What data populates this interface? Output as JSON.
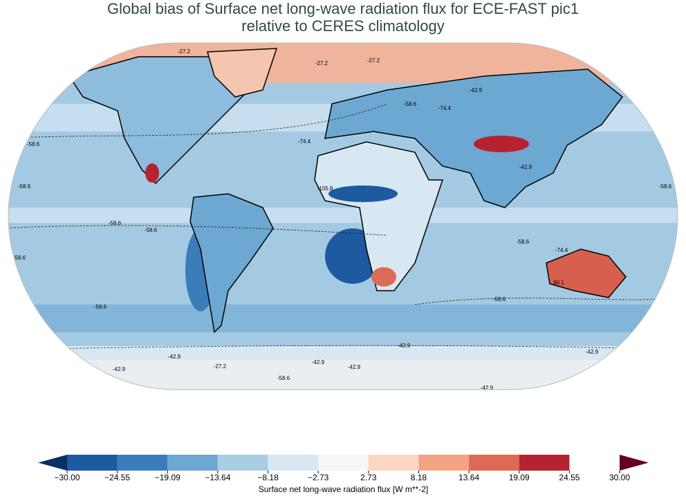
{
  "title": [
    "Global bias of Surface net long-wave radiation flux for ECE-FAST pic1",
    "relative to CERES climatology"
  ],
  "contour_labels": [
    -27.2,
    -27.2,
    -27.2,
    -42.9,
    -58.6,
    -74.4,
    -58.6,
    -58.6,
    -58.6,
    -58.6,
    -58.6,
    -58.6,
    -58.6,
    -58.6,
    -58.6,
    -74.4,
    -42.9,
    90.1,
    -105.8,
    -42.9,
    -42.9,
    -42.9,
    -42.9,
    -42.9,
    -42.9,
    -42.9,
    -58.6,
    -27.2,
    -74.4
  ],
  "colorbar": {
    "label": "Surface net long-wave radiation flux [W m**-2]",
    "ticks": [
      {
        "value": -30,
        "label": "−30.00"
      },
      {
        "value": -24.55,
        "label": "−24.55"
      },
      {
        "value": -19.09,
        "label": "−19.09"
      },
      {
        "value": -13.64,
        "label": "−13.64"
      },
      {
        "value": -8.18,
        "label": "−8.18"
      },
      {
        "value": -2.73,
        "label": "−2.73"
      },
      {
        "value": 2.73,
        "label": "2.73"
      },
      {
        "value": 8.18,
        "label": "8.18"
      },
      {
        "value": 13.64,
        "label": "13.64"
      },
      {
        "value": 19.09,
        "label": "19.09"
      },
      {
        "value": 24.55,
        "label": "24.55"
      },
      {
        "value": 30,
        "label": "30.00"
      }
    ],
    "colors": [
      "#1d5a9f",
      "#3b7dba",
      "#6ca8d2",
      "#a8cee4",
      "#d8e8f2",
      "#f7f7f7",
      "#fbd6c2",
      "#f3a583",
      "#dc6a55",
      "#b72230"
    ],
    "under_color": "#083065",
    "over_color": "#650020"
  }
}
